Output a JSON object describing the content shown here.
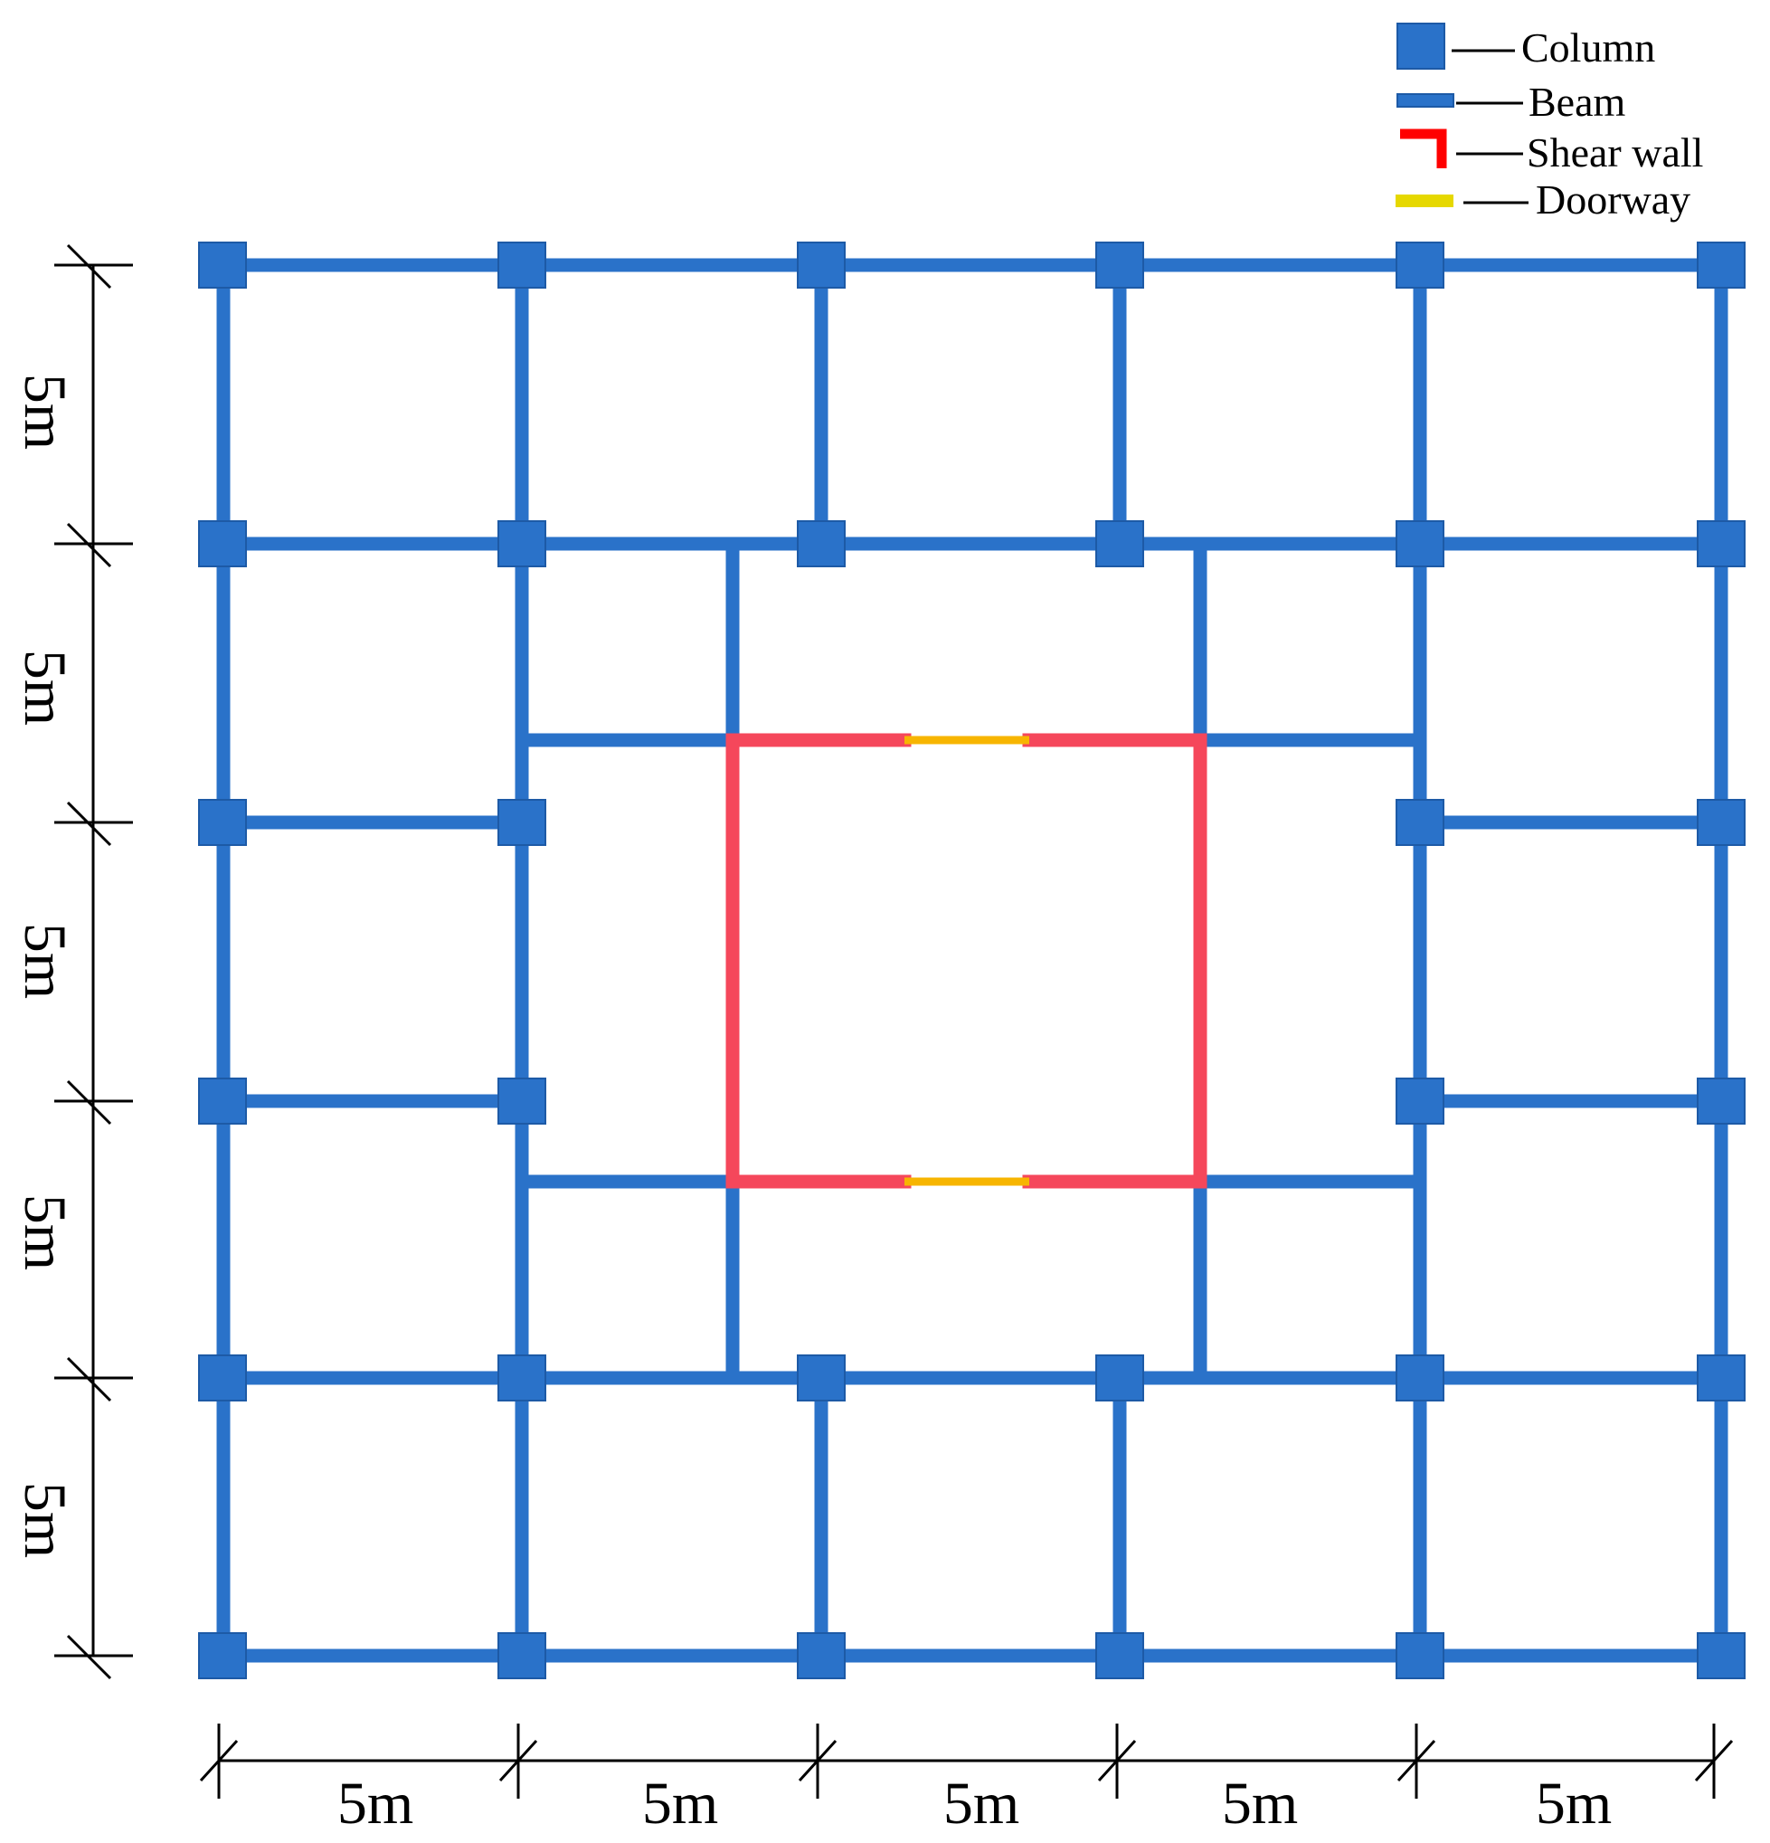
{
  "legend": {
    "items": [
      {
        "key": "column",
        "label": "Column",
        "color": "#2a72c9",
        "icon": "column-square-icon"
      },
      {
        "key": "beam",
        "label": "Beam",
        "color": "#2a72c9",
        "icon": "beam-bar-icon"
      },
      {
        "key": "shear_wall",
        "label": "Shear wall",
        "color": "#ff0000",
        "icon": "shear-wall-icon"
      },
      {
        "key": "doorway",
        "label": "Doorway",
        "color": "#e6d800",
        "icon": "doorway-bar-icon"
      }
    ]
  },
  "colors": {
    "beam": "#2a72c9",
    "column": "#2a72c9",
    "column_border": "#1d5aa6",
    "shear_wall": "#f5475b",
    "doorway": "#f7b500",
    "dimension_line": "#000000"
  },
  "dimensions": {
    "horizontal": [
      "5m",
      "5m",
      "5m",
      "5m",
      "5m"
    ],
    "vertical": [
      "5m",
      "5m",
      "5m",
      "5m",
      "5m"
    ]
  }
}
